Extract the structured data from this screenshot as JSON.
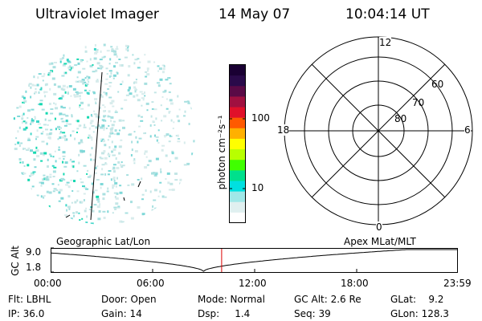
{
  "header": {
    "title": "Ultraviolet Imager",
    "date": "14 May 07",
    "time": "10:04:14 UT"
  },
  "colorbar": {
    "label": "photon cm⁻²s⁻¹",
    "ticks": [
      "100",
      "10"
    ],
    "colors": [
      "#1a0033",
      "#2a0a4a",
      "#5a0a46",
      "#a01040",
      "#e0102a",
      "#ff5a00",
      "#ffb000",
      "#ffff00",
      "#b8ff00",
      "#40ff00",
      "#00e08c",
      "#00e0e0",
      "#a0e8e8",
      "#e0f0f0",
      "#ffffff"
    ]
  },
  "polar": {
    "mlt_labels": {
      "top": "12",
      "left": "18",
      "right": "6",
      "bottom": "0"
    },
    "lat_labels": [
      "60",
      "70",
      "80"
    ]
  },
  "timeline": {
    "left_title": "Geographic Lat/Lon",
    "right_title": "Apex  MLat/MLT",
    "ylabel": "GC Alt",
    "ymax": "9.0",
    "ymin": "1.8",
    "xticks": [
      "00:00",
      "06:00",
      "12:00",
      "18:00",
      "23:59"
    ],
    "current_time_frac": 0.4196,
    "marker_color": "#dd0000"
  },
  "info": {
    "row1": {
      "filter": "Flt: LBHL",
      "door": "Door: Open",
      "mode": "Mode: Normal",
      "gcalt": "GC Alt: 2.6 Re",
      "glat": "GLat:    9.2"
    },
    "row2": {
      "ip": "IP: 36.0",
      "gain": "Gain: 14",
      "dsp": "Dsp:     1.4",
      "seq": "Seq: 39",
      "glon": "GLon: 128.3"
    }
  }
}
